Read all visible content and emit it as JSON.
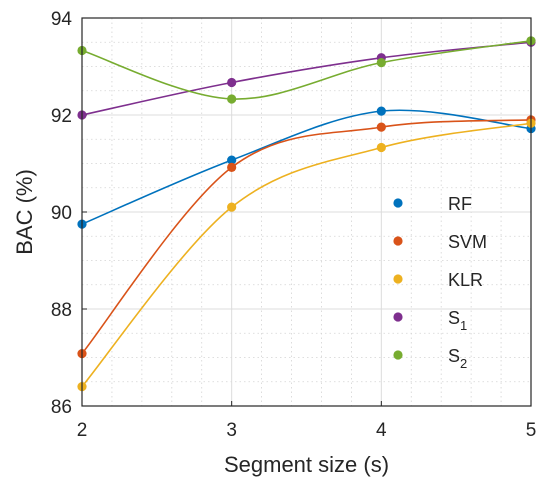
{
  "chart_data": {
    "type": "line",
    "title": "",
    "xlabel": "Segment size (s)",
    "ylabel": "BAC (%)",
    "x": [
      2,
      3,
      4,
      5
    ],
    "xlim": [
      2,
      5
    ],
    "ylim": [
      86,
      94
    ],
    "xticks": [
      "2",
      "3",
      "4",
      "5"
    ],
    "yticks": [
      "86",
      "88",
      "90",
      "92",
      "94"
    ],
    "grid": true,
    "minor_grid": true,
    "legend_position": "inside-right",
    "series": [
      {
        "name": "RF",
        "name_sub": "",
        "color": "#0072BD",
        "values": [
          89.75,
          91.07,
          92.08,
          91.72
        ]
      },
      {
        "name": "SVM",
        "name_sub": "",
        "color": "#D95319",
        "values": [
          87.08,
          90.92,
          91.75,
          91.9
        ]
      },
      {
        "name": "KLR",
        "name_sub": "",
        "color": "#EDB120",
        "values": [
          86.4,
          90.1,
          91.33,
          91.83
        ]
      },
      {
        "name": "S",
        "name_sub": "1",
        "color": "#7E2F8E",
        "values": [
          92.0,
          92.67,
          93.18,
          93.5
        ]
      },
      {
        "name": "S",
        "name_sub": "2",
        "color": "#77AC30",
        "values": [
          93.33,
          92.33,
          93.08,
          93.53
        ]
      }
    ]
  }
}
